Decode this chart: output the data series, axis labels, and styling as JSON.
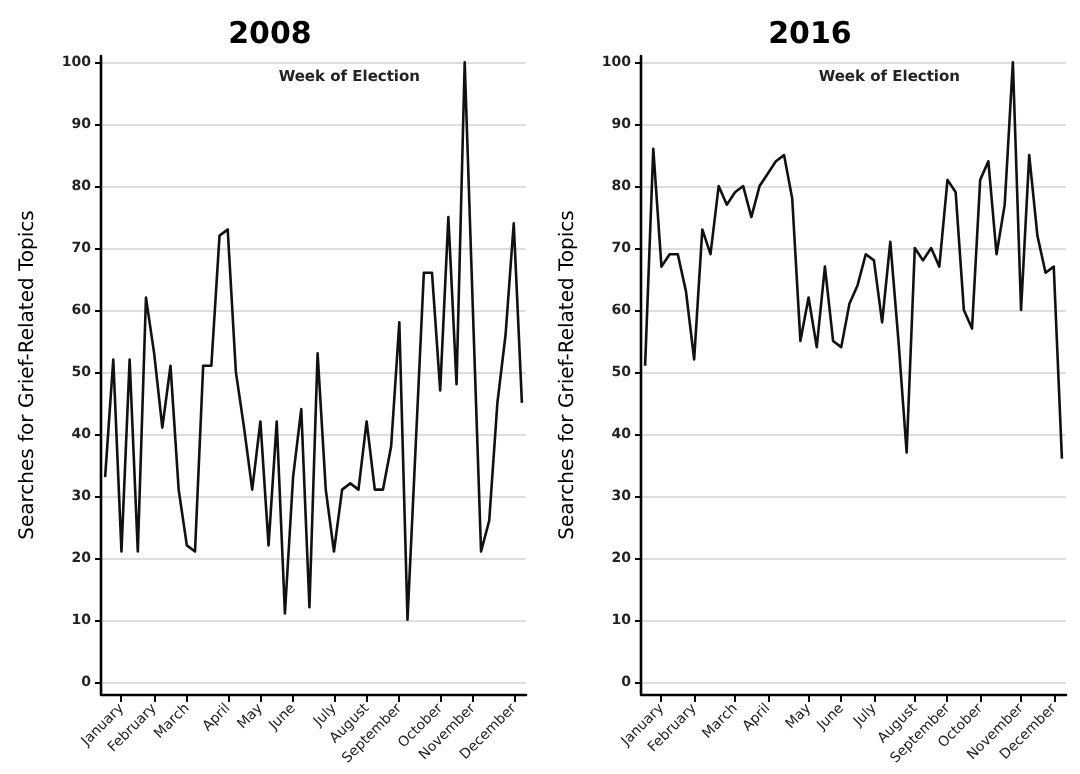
{
  "chart_data": [
    {
      "type": "line",
      "title": "2008",
      "ylabel": "Searches for Grief-Related Topics",
      "categories": [
        null,
        null,
        "January",
        null,
        null,
        null,
        "February",
        null,
        null,
        null,
        "March",
        null,
        null,
        null,
        null,
        "April",
        null,
        null,
        null,
        "May",
        null,
        null,
        null,
        "June",
        null,
        null,
        null,
        null,
        "July",
        null,
        null,
        null,
        "August",
        null,
        null,
        null,
        "September",
        null,
        null,
        null,
        null,
        "October",
        null,
        null,
        null,
        "November",
        null,
        null,
        null,
        null,
        "December",
        null
      ],
      "series": [
        {
          "color": "#111111",
          "values": [
            33,
            52,
            21,
            52,
            21,
            62,
            53,
            41,
            51,
            31,
            22,
            21,
            51,
            51,
            72,
            73,
            50,
            41,
            31,
            42,
            22,
            42,
            11,
            33,
            44,
            12,
            53,
            31,
            21,
            31,
            32,
            31,
            42,
            31,
            31,
            38,
            58,
            10,
            38,
            66,
            66,
            47,
            75,
            48,
            100,
            60,
            21,
            26,
            45,
            56,
            74,
            45
          ]
        }
      ],
      "ylim": [
        -2,
        101
      ],
      "yticks": [
        0,
        10,
        20,
        30,
        40,
        50,
        60,
        70,
        80,
        90,
        100
      ],
      "grid": "y",
      "marker": "none",
      "line_style": "solid",
      "annotations": [
        "Week of Election"
      ]
    },
    {
      "type": "line",
      "title": "2016",
      "ylabel": "Searches for Grief-Related Topics",
      "categories": [
        null,
        null,
        "January",
        null,
        null,
        null,
        "February",
        null,
        null,
        null,
        null,
        "March",
        null,
        null,
        null,
        "April",
        null,
        null,
        null,
        null,
        "May",
        null,
        null,
        null,
        "June",
        null,
        null,
        null,
        "July",
        null,
        null,
        null,
        null,
        "August",
        null,
        null,
        null,
        "September",
        null,
        null,
        null,
        "October",
        null,
        null,
        null,
        null,
        "November",
        null,
        null,
        null,
        "December",
        null
      ],
      "series": [
        {
          "color": "#111111",
          "values": [
            51,
            86,
            67,
            69,
            69,
            63,
            52,
            73,
            69,
            80,
            77,
            79,
            80,
            75,
            80,
            82,
            84,
            85,
            78,
            55,
            62,
            54,
            67,
            55,
            54,
            61,
            64,
            69,
            68,
            58,
            71,
            55,
            37,
            70,
            68,
            70,
            67,
            81,
            79,
            60,
            57,
            81,
            84,
            69,
            77,
            100,
            60,
            85,
            72,
            66,
            67,
            36
          ]
        }
      ],
      "ylim": [
        -2,
        101
      ],
      "yticks": [
        0,
        10,
        20,
        30,
        40,
        50,
        60,
        70,
        80,
        90,
        100
      ],
      "grid": "y",
      "marker": "none",
      "line_style": "solid",
      "annotations": [
        "Week of Election"
      ]
    }
  ]
}
